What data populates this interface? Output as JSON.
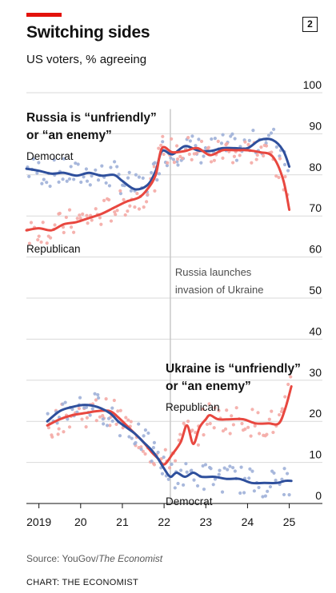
{
  "header": {
    "title": "Switching sides",
    "subtitle": "US voters, % agreeing",
    "chart_number": "2"
  },
  "footer": {
    "source_prefix": "Source: YouGov/",
    "source_publication": "The Economist",
    "credit": "CHART: THE ECONOMIST"
  },
  "colors": {
    "democrat": "#2e4f9c",
    "republican": "#e8473f",
    "democrat_dots": "#9fb0d8",
    "republican_dots": "#f4aaa5",
    "grid": "#d9d9d9",
    "event_line": "#c8c8c8"
  },
  "chart_data": {
    "type": "line",
    "title": "Switching sides",
    "subtitle": "US voters, % agreeing",
    "ylim": [
      0,
      100
    ],
    "yticks": [
      0,
      10,
      20,
      30,
      40,
      50,
      60,
      70,
      80,
      90,
      100
    ],
    "xlim": [
      2018.7,
      2025.2
    ],
    "xticks": [
      {
        "value": 2019.0,
        "label": "2019"
      },
      {
        "value": 2020.0,
        "label": "20"
      },
      {
        "value": 2021.0,
        "label": "21"
      },
      {
        "value": 2022.0,
        "label": "22"
      },
      {
        "value": 2023.0,
        "label": "23"
      },
      {
        "value": 2024.0,
        "label": "24"
      },
      {
        "value": 2025.0,
        "label": "25"
      }
    ],
    "grid": true,
    "event": {
      "x": 2022.15,
      "label_lines": [
        "Russia launches",
        "invasion of Ukraine"
      ]
    },
    "panel_labels": {
      "russia": [
        "Russia is “unfriendly”",
        "or “an enemy”"
      ],
      "ukraine": [
        "Ukraine is “unfriendly”",
        "or “an enemy”"
      ]
    },
    "series": [
      {
        "name": "Democrat",
        "group": "russia",
        "party": "democrat",
        "x": [
          2018.7,
          2019.0,
          2019.3,
          2019.6,
          2019.9,
          2020.2,
          2020.5,
          2020.8,
          2021.0,
          2021.3,
          2021.6,
          2021.8,
          2021.95,
          2022.2,
          2022.5,
          2022.8,
          2023.1,
          2023.4,
          2023.7,
          2024.0,
          2024.3,
          2024.6,
          2024.85,
          2025.0
        ],
        "y": [
          81.5,
          81.0,
          80.3,
          80.5,
          79.8,
          80.5,
          79.8,
          80.0,
          78.5,
          76.5,
          77.5,
          81.0,
          85.8,
          85.0,
          87.0,
          86.0,
          85.8,
          86.5,
          86.5,
          86.5,
          88.5,
          88.5,
          86.0,
          82.0
        ]
      },
      {
        "name": "Republican",
        "group": "russia",
        "party": "republican",
        "x": [
          2018.7,
          2019.0,
          2019.3,
          2019.6,
          2019.9,
          2020.2,
          2020.5,
          2020.8,
          2021.1,
          2021.4,
          2021.6,
          2021.8,
          2021.95,
          2022.2,
          2022.5,
          2022.8,
          2023.1,
          2023.4,
          2023.7,
          2024.0,
          2024.3,
          2024.6,
          2024.85,
          2025.0
        ],
        "y": [
          66.5,
          67.0,
          66.5,
          68.0,
          68.5,
          69.5,
          70.5,
          72.0,
          73.5,
          74.5,
          76.5,
          80.0,
          86.5,
          85.5,
          85.8,
          86.5,
          84.8,
          86.0,
          86.0,
          86.0,
          85.5,
          84.5,
          79.0,
          71.5
        ]
      },
      {
        "name": "Republican",
        "group": "ukraine",
        "party": "republican",
        "x": [
          2019.2,
          2019.5,
          2019.8,
          2020.1,
          2020.4,
          2020.7,
          2020.9,
          2021.1,
          2021.3,
          2021.5,
          2021.7,
          2021.85,
          2022.0,
          2022.2,
          2022.4,
          2022.55,
          2022.7,
          2022.85,
          2023.0,
          2023.1,
          2023.3,
          2023.6,
          2023.9,
          2024.2,
          2024.5,
          2024.75,
          2024.9,
          2025.05
        ],
        "y": [
          19.0,
          20.5,
          21.5,
          22.0,
          22.5,
          22.5,
          21.0,
          19.0,
          17.0,
          15.0,
          12.5,
          11.0,
          9.5,
          12.0,
          15.0,
          19.0,
          14.5,
          18.5,
          20.5,
          21.5,
          20.5,
          20.5,
          20.5,
          19.5,
          19.5,
          19.5,
          23.0,
          28.5
        ]
      },
      {
        "name": "Democrat",
        "group": "ukraine",
        "party": "democrat",
        "x": [
          2019.2,
          2019.5,
          2019.8,
          2020.1,
          2020.4,
          2020.7,
          2020.9,
          2021.1,
          2021.3,
          2021.5,
          2021.7,
          2021.85,
          2022.0,
          2022.15,
          2022.3,
          2022.5,
          2022.7,
          2022.9,
          2023.2,
          2023.5,
          2023.8,
          2024.1,
          2024.4,
          2024.7,
          2024.9,
          2025.05
        ],
        "y": [
          20.0,
          22.5,
          23.5,
          24.0,
          23.5,
          22.0,
          20.0,
          18.5,
          17.0,
          15.0,
          13.0,
          11.0,
          8.5,
          6.5,
          7.5,
          6.5,
          7.5,
          6.5,
          6.5,
          6.0,
          6.0,
          5.0,
          5.0,
          5.0,
          5.5,
          5.5
        ]
      }
    ],
    "legend": [
      {
        "text": "Democrat",
        "group": "russia",
        "placement": "above Democrat line, left"
      },
      {
        "text": "Republican",
        "group": "russia",
        "placement": "below Republican line, left"
      },
      {
        "text": "Republican",
        "group": "ukraine",
        "placement": "above Republican line, right"
      },
      {
        "text": "Democrat",
        "group": "ukraine",
        "placement": "below Democrat line, right of invasion"
      }
    ]
  }
}
